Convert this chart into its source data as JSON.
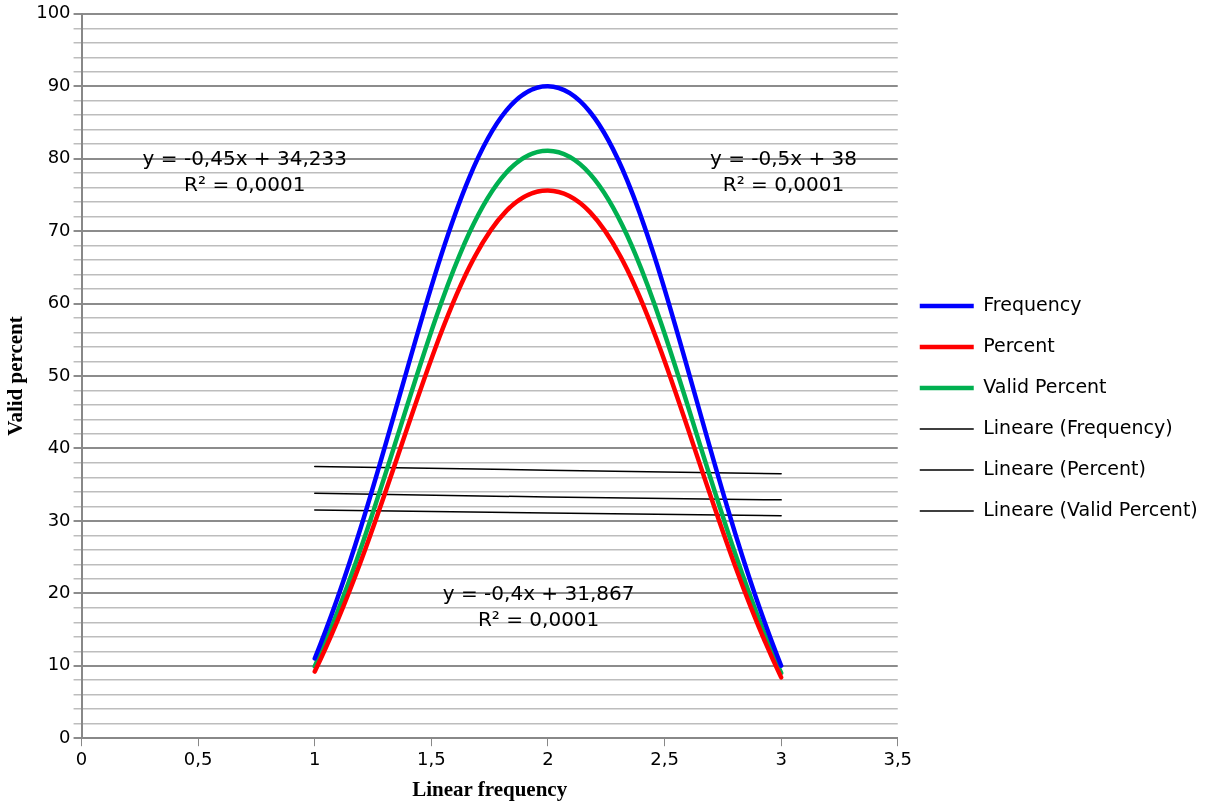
{
  "chart_data": {
    "type": "line",
    "xlabel": "Linear frequency",
    "ylabel": "Valid percent",
    "x": [
      1,
      2,
      3
    ],
    "xlim": [
      0,
      3.5
    ],
    "xticks": [
      0,
      {
        "value": 0.5,
        "label": "0,5"
      },
      1,
      {
        "value": 1.5,
        "label": "1,5"
      },
      2,
      {
        "value": 2.5,
        "label": "2,5"
      },
      3,
      {
        "value": 3.5,
        "label": "3,5"
      }
    ],
    "ylim": [
      0,
      100
    ],
    "yticks": [
      0,
      {
        "value": 2,
        "label": null
      },
      {
        "value": 4,
        "label": null
      },
      {
        "value": 6,
        "label": null
      },
      {
        "value": 8,
        "label": null
      },
      10,
      {
        "value": 12,
        "label": null
      },
      {
        "value": 14,
        "label": null
      },
      {
        "value": 16,
        "label": null
      },
      {
        "value": 18,
        "label": null
      },
      20,
      {
        "value": 22,
        "label": null
      },
      {
        "value": 24,
        "label": null
      },
      {
        "value": 26,
        "label": null
      },
      {
        "value": 28,
        "label": null
      },
      30,
      {
        "value": 32,
        "label": null
      },
      {
        "value": 34,
        "label": null
      },
      {
        "value": 36,
        "label": null
      },
      {
        "value": 38,
        "label": null
      },
      40,
      {
        "value": 42,
        "label": null
      },
      {
        "value": 44,
        "label": null
      },
      {
        "value": 46,
        "label": null
      },
      {
        "value": 48,
        "label": null
      },
      50,
      {
        "value": 52,
        "label": null
      },
      {
        "value": 54,
        "label": null
      },
      {
        "value": 56,
        "label": null
      },
      {
        "value": 58,
        "label": null
      },
      60,
      {
        "value": 62,
        "label": null
      },
      {
        "value": 64,
        "label": null
      },
      {
        "value": 66,
        "label": null
      },
      {
        "value": 68,
        "label": null
      },
      70,
      {
        "value": 72,
        "label": null
      },
      {
        "value": 74,
        "label": null
      },
      {
        "value": 76,
        "label": null
      },
      {
        "value": 78,
        "label": null
      },
      80,
      {
        "value": 82,
        "label": null
      },
      {
        "value": 84,
        "label": null
      },
      {
        "value": 86,
        "label": null
      },
      {
        "value": 88,
        "label": null
      },
      90,
      {
        "value": 92,
        "label": null
      },
      {
        "value": 94,
        "label": null
      },
      {
        "value": 96,
        "label": null
      },
      {
        "value": 98,
        "label": null
      },
      100
    ],
    "grid": "y",
    "legend": "right",
    "marker": "none",
    "line_style": "solid",
    "series": [
      {
        "name": "Frequency",
        "color": "#0000ff",
        "values": [
          11,
          90,
          10
        ]
      },
      {
        "name": "Percent",
        "color": "#ff0000",
        "values": [
          9.2,
          75.6,
          8.4
        ]
      },
      {
        "name": "Valid Percent",
        "color": "#00b050",
        "values": [
          9.9,
          81.1,
          9.0
        ]
      },
      {
        "name": "Lineare (Frequency)",
        "type": "line",
        "color": "#000000",
        "values": [
          37.5,
          37,
          36.5
        ]
      },
      {
        "name": "Lineare (Percent)",
        "type": "line",
        "color": "#000000",
        "values": [
          31.5,
          31.1,
          30.7
        ]
      },
      {
        "name": "Lineare (Valid Percent)",
        "type": "line",
        "color": "#000000",
        "values": [
          33.8,
          33.3,
          32.9
        ]
      }
    ],
    "annotations": [
      "y = -0,45x + 34,233\nR² = 0,0001",
      "y = -0,5x + 38\nR² = 0,0001",
      "y = -0,4x + 31,867\nR² = 0,0001"
    ]
  }
}
